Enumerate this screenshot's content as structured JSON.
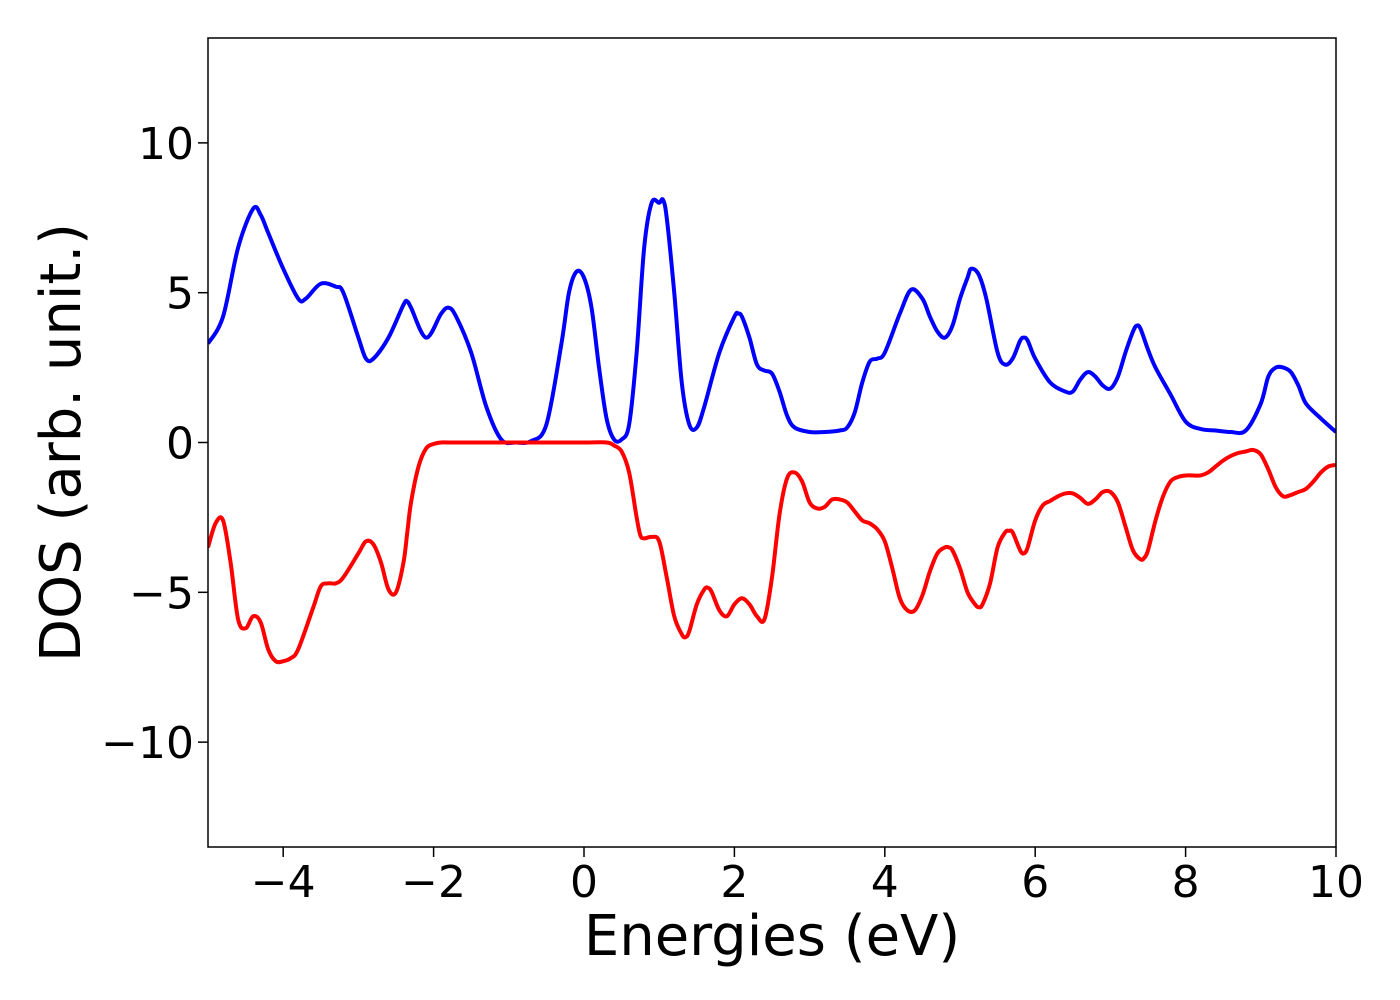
{
  "chart_data": {
    "type": "line",
    "title": "",
    "xlabel": "Energies (eV)",
    "ylabel": "DOS (arb. unit.)",
    "xlim": [
      -5,
      10
    ],
    "ylim": [
      -13.5,
      13.5
    ],
    "xticks": [
      -4,
      -2,
      0,
      2,
      4,
      6,
      8,
      10
    ],
    "xtick_labels": [
      "−4",
      "−2",
      "0",
      "2",
      "4",
      "6",
      "8",
      "10"
    ],
    "yticks": [
      10,
      5,
      0,
      -5,
      -10
    ],
    "ytick_labels": [
      "10",
      "5",
      "0",
      "−5",
      "−10"
    ],
    "grid": false,
    "series": [
      {
        "color": "#0000ff",
        "x": [
          -5.0,
          -4.8,
          -4.6,
          -4.4,
          -4.3,
          -4.2,
          -4.0,
          -3.8,
          -3.7,
          -3.5,
          -3.3,
          -3.2,
          -3.0,
          -2.9,
          -2.8,
          -2.6,
          -2.4,
          -2.35,
          -2.3,
          -2.1,
          -1.9,
          -1.8,
          -1.7,
          -1.5,
          -1.3,
          -1.1,
          -0.9,
          -0.7,
          -0.5,
          -0.3,
          -0.2,
          -0.1,
          0.0,
          0.1,
          0.2,
          0.3,
          0.4,
          0.5,
          0.6,
          0.7,
          0.8,
          0.9,
          1.0,
          1.05,
          1.1,
          1.2,
          1.3,
          1.4,
          1.5,
          1.6,
          1.8,
          2.0,
          2.05,
          2.1,
          2.2,
          2.3,
          2.4,
          2.5,
          2.6,
          2.7,
          2.8,
          3.0,
          3.2,
          3.4,
          3.5,
          3.6,
          3.7,
          3.8,
          3.9,
          4.0,
          4.2,
          4.35,
          4.5,
          4.6,
          4.7,
          4.8,
          4.9,
          5.0,
          5.1,
          5.15,
          5.25,
          5.35,
          5.5,
          5.6,
          5.7,
          5.8,
          5.85,
          5.9,
          6.0,
          6.2,
          6.4,
          6.5,
          6.6,
          6.7,
          6.8,
          6.9,
          7.0,
          7.1,
          7.2,
          7.3,
          7.35,
          7.4,
          7.5,
          7.6,
          7.8,
          8.0,
          8.2,
          8.4,
          8.6,
          8.8,
          9.0,
          9.1,
          9.2,
          9.3,
          9.4,
          9.5,
          9.6,
          9.8,
          10.0
        ],
        "y": [
          3.3,
          4.2,
          6.5,
          7.8,
          7.6,
          7.0,
          5.8,
          4.8,
          4.8,
          5.3,
          5.2,
          5.0,
          3.5,
          2.8,
          2.8,
          3.5,
          4.6,
          4.7,
          4.5,
          3.5,
          4.3,
          4.5,
          4.2,
          3.0,
          1.2,
          0.1,
          0.0,
          0.05,
          0.6,
          3.3,
          5.0,
          5.7,
          5.5,
          4.5,
          2.5,
          0.8,
          0.1,
          0.1,
          0.6,
          3.0,
          6.5,
          8.0,
          8.0,
          8.1,
          7.5,
          5.0,
          2.0,
          0.6,
          0.5,
          1.2,
          3.0,
          4.2,
          4.3,
          4.2,
          3.5,
          2.6,
          2.4,
          2.3,
          1.7,
          0.9,
          0.5,
          0.35,
          0.35,
          0.4,
          0.5,
          1.0,
          2.0,
          2.7,
          2.8,
          3.0,
          4.3,
          5.1,
          4.8,
          4.2,
          3.7,
          3.5,
          3.9,
          4.8,
          5.5,
          5.8,
          5.6,
          4.8,
          3.0,
          2.6,
          2.8,
          3.4,
          3.5,
          3.4,
          2.8,
          2.0,
          1.7,
          1.7,
          2.1,
          2.35,
          2.2,
          1.9,
          1.8,
          2.2,
          3.0,
          3.7,
          3.9,
          3.8,
          3.1,
          2.5,
          1.6,
          0.7,
          0.45,
          0.4,
          0.35,
          0.4,
          1.3,
          2.2,
          2.5,
          2.5,
          2.35,
          1.9,
          1.3,
          0.8,
          0.35
        ]
      },
      {
        "color": "#ff0000",
        "x": [
          -5.0,
          -4.9,
          -4.8,
          -4.7,
          -4.6,
          -4.5,
          -4.4,
          -4.3,
          -4.2,
          -4.1,
          -4.0,
          -3.9,
          -3.8,
          -3.6,
          -3.5,
          -3.4,
          -3.3,
          -3.2,
          -3.0,
          -2.9,
          -2.8,
          -2.7,
          -2.6,
          -2.5,
          -2.4,
          -2.35,
          -2.3,
          -2.2,
          -2.1,
          -2.0,
          -1.9,
          -1.8,
          -1.5,
          -1.0,
          -0.5,
          0.0,
          0.3,
          0.4,
          0.5,
          0.6,
          0.7,
          0.75,
          0.8,
          0.9,
          1.0,
          1.1,
          1.2,
          1.3,
          1.35,
          1.4,
          1.5,
          1.6,
          1.65,
          1.7,
          1.8,
          1.9,
          2.0,
          2.1,
          2.2,
          2.3,
          2.4,
          2.5,
          2.6,
          2.7,
          2.8,
          2.9,
          3.0,
          3.1,
          3.2,
          3.3,
          3.4,
          3.5,
          3.6,
          3.7,
          3.8,
          3.9,
          4.0,
          4.1,
          4.2,
          4.3,
          4.4,
          4.5,
          4.6,
          4.7,
          4.8,
          4.85,
          4.9,
          5.0,
          5.1,
          5.2,
          5.25,
          5.3,
          5.4,
          5.5,
          5.6,
          5.65,
          5.7,
          5.8,
          5.85,
          5.9,
          6.0,
          6.1,
          6.2,
          6.3,
          6.4,
          6.5,
          6.6,
          6.7,
          6.8,
          6.9,
          7.0,
          7.1,
          7.2,
          7.3,
          7.4,
          7.45,
          7.5,
          7.6,
          7.7,
          7.8,
          7.9,
          8.0,
          8.1,
          8.2,
          8.3,
          8.4,
          8.5,
          8.6,
          8.7,
          8.8,
          8.9,
          9.0,
          9.1,
          9.2,
          9.3,
          9.4,
          9.5,
          9.6,
          9.7,
          9.8,
          9.9,
          10.0
        ],
        "y": [
          -3.5,
          -2.7,
          -2.6,
          -4.0,
          -5.9,
          -6.2,
          -5.8,
          -6.0,
          -6.9,
          -7.3,
          -7.3,
          -7.2,
          -6.9,
          -5.5,
          -4.8,
          -4.7,
          -4.7,
          -4.5,
          -3.7,
          -3.3,
          -3.4,
          -4.0,
          -4.9,
          -5.0,
          -4.0,
          -3.0,
          -2.0,
          -0.8,
          -0.2,
          -0.05,
          0.0,
          0.0,
          0.0,
          0.0,
          0.0,
          0.0,
          0.0,
          -0.1,
          -0.3,
          -1.0,
          -2.5,
          -3.1,
          -3.2,
          -3.15,
          -3.3,
          -4.5,
          -5.8,
          -6.4,
          -6.5,
          -6.3,
          -5.4,
          -4.9,
          -4.85,
          -5.0,
          -5.6,
          -5.8,
          -5.4,
          -5.2,
          -5.4,
          -5.8,
          -5.9,
          -4.5,
          -2.4,
          -1.2,
          -1.0,
          -1.3,
          -2.0,
          -2.2,
          -2.15,
          -1.9,
          -1.9,
          -2.0,
          -2.3,
          -2.6,
          -2.7,
          -2.9,
          -3.3,
          -4.2,
          -5.2,
          -5.6,
          -5.6,
          -5.1,
          -4.3,
          -3.7,
          -3.5,
          -3.5,
          -3.6,
          -4.2,
          -5.0,
          -5.4,
          -5.5,
          -5.4,
          -4.7,
          -3.5,
          -3.0,
          -2.95,
          -3.0,
          -3.6,
          -3.7,
          -3.5,
          -2.6,
          -2.1,
          -1.95,
          -1.8,
          -1.7,
          -1.7,
          -1.85,
          -2.05,
          -1.9,
          -1.65,
          -1.65,
          -2.0,
          -2.8,
          -3.6,
          -3.9,
          -3.85,
          -3.6,
          -2.6,
          -1.8,
          -1.3,
          -1.15,
          -1.1,
          -1.1,
          -1.1,
          -1.0,
          -0.8,
          -0.6,
          -0.45,
          -0.35,
          -0.3,
          -0.25,
          -0.4,
          -0.9,
          -1.5,
          -1.8,
          -1.75,
          -1.65,
          -1.55,
          -1.3,
          -1.0,
          -0.8,
          -0.75
        ]
      }
    ]
  }
}
